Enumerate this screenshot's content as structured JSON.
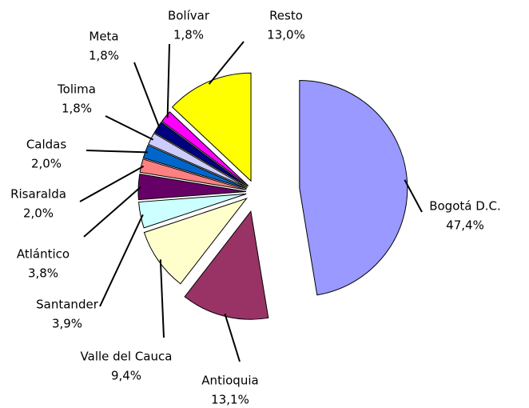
{
  "chart_data": {
    "type": "pie",
    "categories": [
      "Bogotá D.C.",
      "Antioquia",
      "Valle del Cauca",
      "Santander",
      "Atlántico",
      "Risaralda",
      "Caldas",
      "Tolima",
      "Meta",
      "Bolívar",
      "Resto"
    ],
    "values": [
      47.4,
      13.1,
      9.4,
      3.9,
      3.8,
      2.0,
      2.0,
      1.8,
      1.8,
      1.8,
      13.0
    ],
    "value_labels": [
      "47,4%",
      "13,1%",
      "9,4%",
      "3,9%",
      "3,8%",
      "2,0%",
      "2,0%",
      "1,8%",
      "1,8%",
      "1,8%",
      "13,0%"
    ],
    "colors": [
      "#9999ff",
      "#993366",
      "#ffffcc",
      "#ccffff",
      "#660066",
      "#ff8080",
      "#0066cc",
      "#ccccff",
      "#000080",
      "#ff00ff",
      "#ffff00"
    ]
  }
}
